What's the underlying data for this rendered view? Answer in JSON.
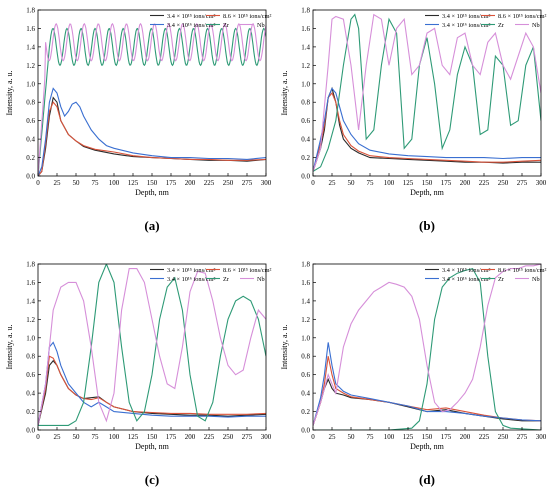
{
  "legend": {
    "row1": [
      "3.4 × 10¹⁵ ions/cm²",
      "8.6 × 10¹⁵ ions/cm²"
    ],
    "row2": [
      "3.4 × 10¹⁶ ions/cm²",
      "Zr",
      "Nb"
    ]
  },
  "colors": {
    "dose1": "#2b2b2b",
    "dose2": "#d9533a",
    "dose3": "#3a6fd1",
    "Zr": "#2e9a76",
    "Nb": "#d68fd9"
  },
  "chart_data": [
    {
      "type": "line",
      "panel_label": "(a)",
      "xlabel": "Depth, nm",
      "ylabel": "Intensity, a. u.",
      "xlim": [
        0,
        300
      ],
      "ylim": [
        0,
        1.8
      ],
      "xticks": [
        0,
        25,
        50,
        75,
        100,
        125,
        150,
        175,
        200,
        225,
        250,
        275,
        300
      ],
      "yticks": [
        0.0,
        0.2,
        0.4,
        0.6,
        0.8,
        1.0,
        1.2,
        1.4,
        1.6,
        1.8
      ],
      "series": [
        {
          "name": "3.4 × 10¹⁵ ions/cm²",
          "color_key": "dose1",
          "x": [
            0,
            5,
            10,
            15,
            20,
            25,
            30,
            40,
            50,
            60,
            75,
            100,
            125,
            150,
            175,
            200,
            225,
            250,
            275,
            300
          ],
          "y": [
            0,
            0.05,
            0.3,
            0.65,
            0.85,
            0.8,
            0.6,
            0.45,
            0.38,
            0.32,
            0.28,
            0.24,
            0.21,
            0.2,
            0.19,
            0.18,
            0.17,
            0.17,
            0.16,
            0.18
          ]
        },
        {
          "name": "8.6 × 10¹⁵ ions/cm²",
          "color_key": "dose2",
          "x": [
            0,
            5,
            10,
            15,
            20,
            25,
            30,
            40,
            50,
            60,
            75,
            100,
            125,
            150,
            175,
            200,
            225,
            250,
            275,
            300
          ],
          "y": [
            0,
            0.05,
            0.35,
            0.7,
            0.8,
            0.75,
            0.6,
            0.45,
            0.38,
            0.33,
            0.29,
            0.26,
            0.22,
            0.2,
            0.19,
            0.18,
            0.18,
            0.17,
            0.17,
            0.18
          ]
        },
        {
          "name": "3.4 × 10¹⁶ ions/cm²",
          "color_key": "dose3",
          "x": [
            0,
            5,
            10,
            15,
            20,
            25,
            30,
            35,
            40,
            45,
            50,
            55,
            60,
            70,
            80,
            90,
            100,
            125,
            150,
            175,
            200,
            225,
            250,
            275,
            300
          ],
          "y": [
            0,
            0.1,
            0.4,
            0.8,
            0.95,
            0.9,
            0.75,
            0.65,
            0.7,
            0.78,
            0.8,
            0.75,
            0.65,
            0.5,
            0.4,
            0.33,
            0.3,
            0.25,
            0.22,
            0.2,
            0.2,
            0.19,
            0.19,
            0.18,
            0.2
          ]
        },
        {
          "name": "Zr",
          "color_key": "Zr",
          "kind": "osc",
          "base": 1.4,
          "amp": 0.2,
          "period": 18.5,
          "phase": 0.0,
          "start": 15,
          "rise": 1.55
        },
        {
          "name": "Nb",
          "color_key": "Nb",
          "kind": "osc",
          "base": 1.45,
          "amp": 0.2,
          "period": 18.5,
          "phase": 3.14,
          "start": 10,
          "rise": 1.3
        }
      ]
    },
    {
      "type": "line",
      "panel_label": "(b)",
      "xlabel": "Depth, nm",
      "ylabel": "Intensity, a. u.",
      "xlim": [
        0,
        300
      ],
      "ylim": [
        0,
        1.8
      ],
      "xticks": [
        0,
        25,
        50,
        75,
        100,
        125,
        150,
        175,
        200,
        225,
        250,
        275,
        300
      ],
      "yticks": [
        0.0,
        0.2,
        0.4,
        0.6,
        0.8,
        1.0,
        1.2,
        1.4,
        1.6,
        1.8
      ],
      "series": [
        {
          "name": "3.4 × 10¹⁵ ions/cm²",
          "color_key": "dose1",
          "x": [
            0,
            10,
            15,
            20,
            25,
            30,
            35,
            40,
            50,
            60,
            75,
            100,
            125,
            150,
            175,
            200,
            225,
            250,
            275,
            300
          ],
          "y": [
            0.05,
            0.3,
            0.5,
            0.85,
            0.95,
            0.8,
            0.55,
            0.4,
            0.3,
            0.25,
            0.2,
            0.19,
            0.18,
            0.17,
            0.16,
            0.15,
            0.15,
            0.14,
            0.15,
            0.15
          ]
        },
        {
          "name": "8.6 × 10¹⁵ ions/cm²",
          "color_key": "dose2",
          "x": [
            0,
            10,
            15,
            20,
            25,
            30,
            35,
            40,
            50,
            60,
            75,
            100,
            125,
            150,
            175,
            200,
            225,
            250,
            275,
            300
          ],
          "y": [
            0.05,
            0.35,
            0.55,
            0.85,
            0.9,
            0.8,
            0.6,
            0.45,
            0.33,
            0.27,
            0.22,
            0.2,
            0.19,
            0.18,
            0.17,
            0.16,
            0.15,
            0.15,
            0.16,
            0.17
          ]
        },
        {
          "name": "3.4 × 10¹⁶ ions/cm²",
          "color_key": "dose3",
          "x": [
            0,
            10,
            15,
            20,
            25,
            30,
            35,
            40,
            50,
            60,
            75,
            100,
            125,
            150,
            175,
            200,
            225,
            250,
            275,
            300
          ],
          "y": [
            0.05,
            0.4,
            0.6,
            0.85,
            0.95,
            0.9,
            0.75,
            0.6,
            0.45,
            0.35,
            0.28,
            0.24,
            0.22,
            0.21,
            0.2,
            0.2,
            0.2,
            0.19,
            0.2,
            0.2
          ]
        },
        {
          "name": "Zr",
          "color_key": "Zr",
          "x": [
            0,
            10,
            20,
            30,
            40,
            50,
            55,
            60,
            70,
            80,
            90,
            100,
            110,
            120,
            130,
            140,
            150,
            160,
            170,
            180,
            190,
            200,
            210,
            220,
            230,
            240,
            250,
            260,
            270,
            280,
            290,
            300
          ],
          "y": [
            0.05,
            0.1,
            0.3,
            0.6,
            1.2,
            1.7,
            1.75,
            1.6,
            0.4,
            0.5,
            1.2,
            1.7,
            1.55,
            0.3,
            0.4,
            1.2,
            1.5,
            1.0,
            0.3,
            0.5,
            1.1,
            1.4,
            1.2,
            0.45,
            0.5,
            1.3,
            1.2,
            0.55,
            0.6,
            1.2,
            1.4,
            0.6
          ]
        },
        {
          "name": "Nb",
          "color_key": "Nb",
          "x": [
            0,
            10,
            20,
            25,
            30,
            40,
            50,
            60,
            70,
            80,
            90,
            100,
            110,
            120,
            130,
            140,
            150,
            160,
            170,
            180,
            190,
            200,
            210,
            220,
            230,
            240,
            250,
            260,
            270,
            280,
            290,
            300
          ],
          "y": [
            0.05,
            0.3,
            1.2,
            1.7,
            1.73,
            1.7,
            1.2,
            0.5,
            1.2,
            1.75,
            1.7,
            1.2,
            1.6,
            1.7,
            1.1,
            1.2,
            1.55,
            1.6,
            1.2,
            1.1,
            1.5,
            1.55,
            1.2,
            1.1,
            1.45,
            1.55,
            1.2,
            1.05,
            1.3,
            1.55,
            1.4,
            0.9
          ]
        }
      ]
    },
    {
      "type": "line",
      "panel_label": "(c)",
      "xlabel": "Depth, nm",
      "ylabel": "Intensity, a. u.",
      "xlim": [
        0,
        300
      ],
      "ylim": [
        0,
        1.8
      ],
      "xticks": [
        0,
        25,
        50,
        75,
        100,
        125,
        150,
        175,
        200,
        225,
        250,
        275,
        300
      ],
      "yticks": [
        0.0,
        0.2,
        0.4,
        0.6,
        0.8,
        1.0,
        1.2,
        1.4,
        1.6,
        1.8
      ],
      "series": [
        {
          "name": "3.4 × 10¹⁵ ions/cm²",
          "color_key": "dose1",
          "x": [
            0,
            10,
            15,
            20,
            25,
            30,
            40,
            50,
            60,
            70,
            80,
            90,
            100,
            125,
            150,
            175,
            200,
            225,
            250,
            275,
            300
          ],
          "y": [
            0.05,
            0.4,
            0.7,
            0.75,
            0.7,
            0.6,
            0.45,
            0.38,
            0.34,
            0.35,
            0.36,
            0.3,
            0.25,
            0.2,
            0.18,
            0.17,
            0.16,
            0.16,
            0.15,
            0.16,
            0.17
          ]
        },
        {
          "name": "8.6 × 10¹⁵ ions/cm²",
          "color_key": "dose2",
          "x": [
            0,
            10,
            15,
            20,
            25,
            30,
            40,
            50,
            60,
            70,
            80,
            90,
            100,
            125,
            150,
            175,
            200,
            225,
            250,
            275,
            300
          ],
          "y": [
            0.05,
            0.45,
            0.8,
            0.78,
            0.7,
            0.6,
            0.45,
            0.38,
            0.34,
            0.33,
            0.35,
            0.3,
            0.25,
            0.2,
            0.19,
            0.18,
            0.18,
            0.17,
            0.17,
            0.17,
            0.18
          ]
        },
        {
          "name": "3.4 × 10¹⁶ ions/cm²",
          "color_key": "dose3",
          "x": [
            0,
            10,
            15,
            20,
            25,
            30,
            40,
            50,
            60,
            70,
            80,
            90,
            100,
            125,
            150,
            175,
            200,
            225,
            250,
            275,
            300
          ],
          "y": [
            0.05,
            0.5,
            0.9,
            0.95,
            0.85,
            0.7,
            0.5,
            0.4,
            0.3,
            0.25,
            0.3,
            0.25,
            0.2,
            0.18,
            0.16,
            0.15,
            0.15,
            0.15,
            0.14,
            0.15,
            0.15
          ]
        },
        {
          "name": "Zr",
          "color_key": "Zr",
          "x": [
            0,
            20,
            40,
            50,
            60,
            70,
            80,
            90,
            100,
            110,
            120,
            130,
            140,
            150,
            160,
            170,
            180,
            190,
            200,
            210,
            220,
            230,
            240,
            250,
            260,
            270,
            280,
            290,
            300
          ],
          "y": [
            0.05,
            0.05,
            0.05,
            0.1,
            0.3,
            0.9,
            1.6,
            1.8,
            1.6,
            0.9,
            0.3,
            0.1,
            0.2,
            0.6,
            1.2,
            1.55,
            1.65,
            1.3,
            0.6,
            0.15,
            0.1,
            0.3,
            0.8,
            1.2,
            1.4,
            1.45,
            1.4,
            1.2,
            0.8
          ]
        },
        {
          "name": "Nb",
          "color_key": "Nb",
          "x": [
            0,
            10,
            20,
            30,
            40,
            50,
            60,
            70,
            80,
            90,
            100,
            110,
            120,
            130,
            140,
            150,
            160,
            170,
            180,
            190,
            200,
            210,
            220,
            230,
            240,
            250,
            260,
            270,
            280,
            290,
            300
          ],
          "y": [
            0.05,
            0.5,
            1.3,
            1.55,
            1.6,
            1.6,
            1.4,
            0.9,
            0.3,
            0.1,
            0.4,
            1.3,
            1.75,
            1.75,
            1.6,
            1.2,
            0.8,
            0.5,
            0.45,
            0.9,
            1.5,
            1.72,
            1.7,
            1.4,
            1.0,
            0.7,
            0.6,
            0.65,
            1.0,
            1.3,
            1.2
          ]
        }
      ]
    },
    {
      "type": "line",
      "panel_label": "(d)",
      "xlabel": "Depth, nm",
      "ylabel": "Intensity, a. u.",
      "xlim": [
        0,
        300
      ],
      "ylim": [
        0,
        1.8
      ],
      "xticks": [
        0,
        25,
        50,
        75,
        100,
        125,
        150,
        175,
        200,
        225,
        250,
        275,
        300
      ],
      "yticks": [
        0.0,
        0.2,
        0.4,
        0.6,
        0.8,
        1.0,
        1.2,
        1.4,
        1.6,
        1.8
      ],
      "series": [
        {
          "name": "3.4 × 10¹⁵ ions/cm²",
          "color_key": "dose1",
          "x": [
            0,
            10,
            15,
            20,
            25,
            30,
            40,
            50,
            75,
            100,
            125,
            150,
            175,
            200,
            225,
            250,
            275,
            300
          ],
          "y": [
            0.05,
            0.3,
            0.45,
            0.55,
            0.45,
            0.4,
            0.38,
            0.35,
            0.33,
            0.3,
            0.25,
            0.2,
            0.22,
            0.18,
            0.15,
            0.12,
            0.1,
            0.1
          ]
        },
        {
          "name": "8.6 × 10¹⁵ ions/cm²",
          "color_key": "dose2",
          "x": [
            0,
            10,
            15,
            20,
            25,
            30,
            40,
            50,
            75,
            100,
            125,
            150,
            175,
            200,
            225,
            250,
            275,
            300
          ],
          "y": [
            0.05,
            0.3,
            0.5,
            0.8,
            0.6,
            0.45,
            0.4,
            0.36,
            0.33,
            0.3,
            0.26,
            0.22,
            0.24,
            0.2,
            0.16,
            0.13,
            0.11,
            0.1
          ]
        },
        {
          "name": "3.4 × 10¹⁶ ions/cm²",
          "color_key": "dose3",
          "x": [
            0,
            10,
            15,
            20,
            25,
            30,
            40,
            50,
            75,
            100,
            125,
            150,
            175,
            200,
            225,
            250,
            275,
            300
          ],
          "y": [
            0.05,
            0.35,
            0.6,
            0.95,
            0.7,
            0.5,
            0.42,
            0.38,
            0.34,
            0.3,
            0.26,
            0.2,
            0.2,
            0.18,
            0.15,
            0.13,
            0.11,
            0.1
          ]
        },
        {
          "name": "Zr",
          "color_key": "Zr",
          "x": [
            0,
            50,
            100,
            130,
            140,
            150,
            160,
            170,
            180,
            190,
            200,
            210,
            220,
            230,
            240,
            250,
            260,
            300
          ],
          "y": [
            0.0,
            0.0,
            0.0,
            0.02,
            0.1,
            0.5,
            1.2,
            1.55,
            1.65,
            1.7,
            1.73,
            1.75,
            1.6,
            0.8,
            0.2,
            0.05,
            0.02,
            0.0
          ]
        },
        {
          "name": "Nb",
          "color_key": "Nb",
          "x": [
            0,
            10,
            20,
            25,
            30,
            40,
            50,
            60,
            70,
            80,
            90,
            100,
            110,
            120,
            130,
            140,
            150,
            160,
            170,
            180,
            190,
            200,
            210,
            220,
            230,
            240,
            250,
            260,
            270,
            280,
            290,
            300
          ],
          "y": [
            0.05,
            0.3,
            0.6,
            0.5,
            0.4,
            0.9,
            1.15,
            1.3,
            1.4,
            1.5,
            1.55,
            1.6,
            1.58,
            1.55,
            1.45,
            1.2,
            0.7,
            0.3,
            0.2,
            0.22,
            0.3,
            0.4,
            0.55,
            0.9,
            1.35,
            1.65,
            1.72,
            1.75,
            1.75,
            1.78,
            1.78,
            1.8
          ]
        }
      ]
    }
  ]
}
